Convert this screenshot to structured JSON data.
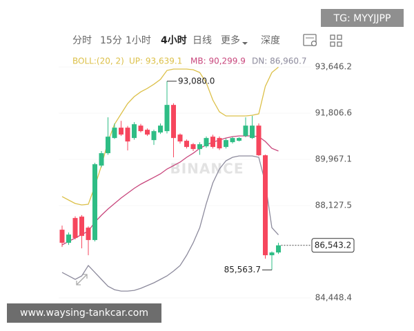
{
  "watermark": "TG: MYYJJPP",
  "toolbar": [
    "分时",
    "15分",
    "1小时",
    "4小时",
    "日线",
    "更多",
    "深度"
  ],
  "selected_tab": 3,
  "footer": "www.waysing-tankcar.com",
  "chart_data": {
    "type": "candlestick",
    "indicator": "BOLL:(20, 2)",
    "indicator_labels": [
      "UP: 93,639.1",
      "MB: 90,299.9",
      "DN: 86,960.7"
    ],
    "logo": "BINANCE",
    "open": [
      87166,
      86644,
      87632,
      87687,
      87248,
      86754,
      89719,
      90214,
      90818,
      91230,
      91230,
      90818,
      91312,
      91147,
      90735,
      91037,
      91092,
      92136,
      90955,
      90708,
      90571,
      90378,
      90488,
      90872,
      90818,
      90461,
      90653,
      90708,
      90900,
      90818,
      91312,
      90131,
      86149,
      86259
    ],
    "high": [
      87330,
      87056,
      87700,
      87750,
      87300,
      89830,
      90300,
      91641,
      91400,
      91500,
      91300,
      91450,
      91380,
      91200,
      91150,
      91400,
      93080,
      92200,
      91000,
      90760,
      90620,
      90650,
      90880,
      90950,
      90880,
      90800,
      90860,
      90850,
      91641,
      91700,
      91400,
      90160,
      86300,
      86644
    ],
    "low": [
      86479,
      86561,
      86780,
      86424,
      86149,
      86700,
      89650,
      90150,
      90780,
      90900,
      90324,
      90750,
      91040,
      90900,
      90543,
      90980,
      91000,
      90049,
      90600,
      90400,
      90300,
      90150,
      90430,
      90400,
      90340,
      90400,
      90600,
      90680,
      90850,
      90780,
      90100,
      86012,
      85563.7,
      86200
    ],
    "close": [
      86644,
      86973,
      86836,
      86918,
      86754,
      89774,
      90214,
      90872,
      91230,
      90955,
      90680,
      91367,
      91092,
      90955,
      91092,
      91312,
      92136,
      90818,
      90680,
      90461,
      90378,
      90571,
      90818,
      90461,
      90406,
      90735,
      90818,
      90818,
      91312,
      91312,
      90131,
      86149,
      86259,
      86543.2
    ],
    "up_color": "#2ebd85",
    "down_color": "#f6465d",
    "series": [
      {
        "color": "#dcc048",
        "values": [
          88484,
          88346,
          88209,
          88154,
          88181,
          88895,
          89719,
          90680,
          91367,
          91779,
          92191,
          92465,
          92657,
          92795,
          92959,
          93152,
          93509,
          93564,
          93564,
          93564,
          93536,
          93426,
          93014,
          92328,
          91861,
          91696,
          91696,
          91696,
          91696,
          91724,
          91779,
          92877,
          93426,
          93639.1
        ]
      },
      {
        "color": "#c8467c",
        "values": [
          86561,
          86699,
          86836,
          86973,
          87111,
          87467,
          87742,
          87989,
          88209,
          88429,
          88621,
          88813,
          88978,
          89115,
          89252,
          89390,
          89582,
          89719,
          89857,
          90049,
          90213,
          90406,
          90543,
          90653,
          90735,
          90818,
          90873,
          90900,
          90900,
          90900,
          90873,
          90680,
          90406,
          90299.9
        ]
      },
      {
        "color": "#8c8a9c",
        "values": [
          85463,
          85326,
          85188,
          85326,
          85738,
          85463,
          85188,
          84914,
          84776,
          84721,
          84721,
          84749,
          84831,
          84941,
          85051,
          85188,
          85326,
          85518,
          85738,
          86149,
          86644,
          87248,
          88209,
          89033,
          89582,
          89911,
          90049,
          90104,
          90104,
          90104,
          90049,
          89033,
          87248,
          86960.7
        ]
      }
    ],
    "ylim": [
      84230,
      93980
    ],
    "yticks": [
      {
        "value": 93646.2,
        "label": "93,646.2"
      },
      {
        "value": 91806.6,
        "label": "91,806.6"
      },
      {
        "value": 89967.1,
        "label": "89,967.1"
      },
      {
        "value": 88127.5,
        "label": "88,127.5"
      },
      {
        "value": 84448.4,
        "label": "84,448.4"
      }
    ],
    "high_label": "93,080.0",
    "low_label": "85,563.7",
    "last_label": "86,543.2"
  }
}
